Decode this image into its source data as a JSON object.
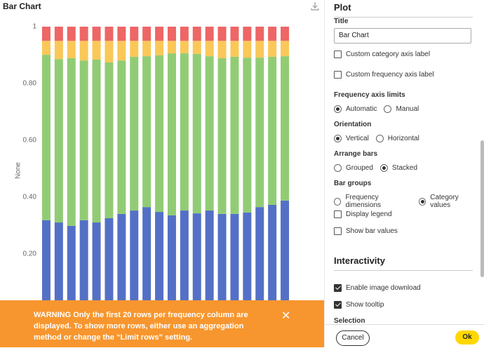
{
  "chart_data": {
    "type": "bar",
    "stacked": true,
    "title": "Bar Chart",
    "y_label": "None",
    "ylim": [
      0,
      1
    ],
    "yticks": [
      1,
      {
        "value": 0.8,
        "label": "0.80"
      },
      {
        "value": 0.6,
        "label": "0.60"
      },
      {
        "value": 0.4,
        "label": "0.40"
      },
      {
        "value": 0.2,
        "label": "0.20"
      }
    ],
    "series": [
      {
        "color": "#5470c6",
        "values": [
          0.319,
          0.311,
          0.299,
          0.319,
          0.311,
          0.326,
          0.341,
          0.353,
          0.365,
          0.348,
          0.336,
          0.353,
          0.343,
          0.353,
          0.341,
          0.341,
          0.346,
          0.365,
          0.373,
          0.388
        ]
      },
      {
        "color": "#91cc75",
        "values": [
          0.582,
          0.575,
          0.59,
          0.562,
          0.573,
          0.548,
          0.54,
          0.541,
          0.531,
          0.551,
          0.57,
          0.553,
          0.561,
          0.543,
          0.548,
          0.553,
          0.545,
          0.526,
          0.521,
          0.508
        ]
      },
      {
        "color": "#fac858",
        "values": [
          0.049,
          0.064,
          0.061,
          0.069,
          0.066,
          0.076,
          0.069,
          0.056,
          0.054,
          0.051,
          0.044,
          0.044,
          0.046,
          0.054,
          0.061,
          0.056,
          0.059,
          0.059,
          0.056,
          0.054
        ]
      },
      {
        "color": "#ee6666",
        "values": [
          0.05,
          0.05,
          0.05,
          0.05,
          0.05,
          0.05,
          0.05,
          0.05,
          0.05,
          0.05,
          0.05,
          0.05,
          0.05,
          0.05,
          0.05,
          0.05,
          0.05,
          0.05,
          0.05,
          0.05
        ]
      }
    ]
  },
  "plot_section": {
    "heading": "Plot",
    "title_field": {
      "label": "Title",
      "value": "Bar Chart"
    },
    "checkboxes": [
      {
        "label": "Custom category axis label",
        "checked": false
      },
      {
        "label": "Custom frequency axis label",
        "checked": false
      }
    ],
    "radio_groups": [
      {
        "label": "Frequency axis limits",
        "options": [
          "Automatic",
          "Manual"
        ],
        "selected": 0
      },
      {
        "label": "Orientation",
        "options": [
          "Vertical",
          "Horizontal"
        ],
        "selected": 0
      },
      {
        "label": "Arrange bars",
        "options": [
          "Grouped",
          "Stacked"
        ],
        "selected": 1
      },
      {
        "label": "Bar groups",
        "options": [
          "Frequency dimensions",
          "Category values"
        ],
        "selected": 1
      }
    ],
    "more_checkboxes": [
      {
        "label": "Display legend",
        "checked": false
      },
      {
        "label": "Show bar values",
        "checked": false
      }
    ]
  },
  "interactivity": {
    "heading": "Interactivity",
    "checkboxes": [
      {
        "label": "Enable image download",
        "checked": true
      },
      {
        "label": "Show tooltip",
        "checked": true
      }
    ],
    "next_heading": "Selection"
  },
  "warning": "WARNING Only the first 20 rows per frequency column are displayed. To show more rows, either use an aggregation method or change the “Limit rows” setting.",
  "buttons": {
    "cancel": "Cancel",
    "ok": "Ok"
  }
}
